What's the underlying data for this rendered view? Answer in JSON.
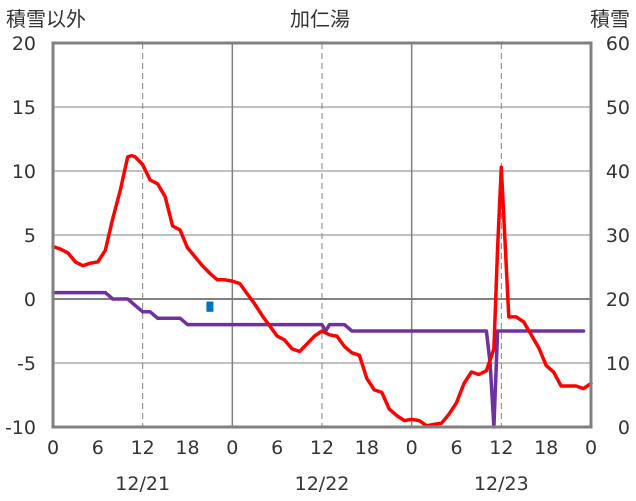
{
  "chart_data": {
    "type": "line",
    "title": "加仁湯",
    "ylabel_left": "積雪以外",
    "ylabel_right": "積雪",
    "ylim_left": [
      -10,
      20
    ],
    "ylim_right": [
      0,
      60
    ],
    "yticks_left": [
      "20",
      "15",
      "10",
      "5",
      "0",
      "-5",
      "-10"
    ],
    "yticks_right": [
      "60",
      "50",
      "40",
      "30",
      "20",
      "10",
      "0"
    ],
    "xlim_hours": [
      0,
      72
    ],
    "xticks": [
      "0",
      "6",
      "12",
      "18",
      "0",
      "6",
      "12",
      "18",
      "0",
      "6",
      "12",
      "18",
      "0"
    ],
    "dates": [
      "12/21",
      "12/22",
      "12/23"
    ],
    "grid": true,
    "colors": {
      "temperature": "#ff0000",
      "snow_depth": "#7030a0",
      "precipitation": "#0070c0",
      "axis": "#808080"
    },
    "series": [
      {
        "key": "temperature",
        "axis": "left",
        "x": [
          0,
          1,
          2,
          3,
          4,
          5,
          6,
          7,
          8,
          9,
          10,
          10.5,
          11,
          12,
          13,
          14,
          15,
          16,
          17,
          18,
          19,
          20,
          21,
          22,
          23,
          24,
          25,
          26,
          27,
          28,
          29,
          30,
          31,
          32,
          33,
          34,
          35,
          36,
          37,
          38,
          39,
          40,
          41,
          42,
          43,
          44,
          45,
          46,
          47,
          48,
          49,
          50,
          51,
          52,
          53,
          54,
          55,
          56,
          57,
          58,
          59,
          59.5,
          60,
          61,
          62,
          63,
          64,
          65,
          66,
          67,
          68,
          69,
          70,
          71,
          72
        ],
        "values": [
          4.1,
          3.9,
          3.6,
          2.9,
          2.6,
          2.8,
          2.9,
          3.8,
          6.3,
          8.5,
          11.1,
          11.2,
          11.1,
          10.5,
          9.3,
          9.0,
          8.0,
          5.7,
          5.4,
          4.0,
          3.3,
          2.6,
          2.0,
          1.5,
          1.5,
          1.4,
          1.2,
          0.4,
          -0.4,
          -1.3,
          -2.1,
          -2.9,
          -3.2,
          -3.9,
          -4.1,
          -3.5,
          -2.9,
          -2.5,
          -2.8,
          -2.9,
          -3.7,
          -4.2,
          -4.4,
          -6.2,
          -7.1,
          -7.3,
          -8.6,
          -9.1,
          -9.5,
          -9.4,
          -9.5,
          -9.9,
          -9.8,
          -9.7,
          -9.0,
          -8.1,
          -6.6,
          -5.7,
          -5.9,
          -5.6,
          -3.9,
          4.0,
          10.3,
          -1.4,
          -1.4,
          -1.8,
          -2.8,
          -3.8,
          -5.2,
          -5.7,
          -6.8,
          -6.8,
          -6.8,
          -7.0,
          -6.6
        ]
      },
      {
        "key": "snow_depth",
        "axis": "right",
        "x": [
          0,
          7,
          8,
          10,
          11,
          12,
          13,
          14,
          17,
          18,
          36,
          36.5,
          37,
          39,
          40,
          58,
          58.5,
          59,
          59.5,
          71
        ],
        "values": [
          21,
          21,
          20,
          20,
          19,
          18,
          18,
          17,
          17,
          16,
          16,
          15,
          16,
          16,
          15,
          15,
          10,
          0,
          15,
          15
        ]
      },
      {
        "key": "precipitation",
        "axis": "left",
        "type": "bar",
        "x": [
          21
        ],
        "values": [
          -1.0
        ],
        "base": [
          -0.2
        ]
      }
    ]
  }
}
